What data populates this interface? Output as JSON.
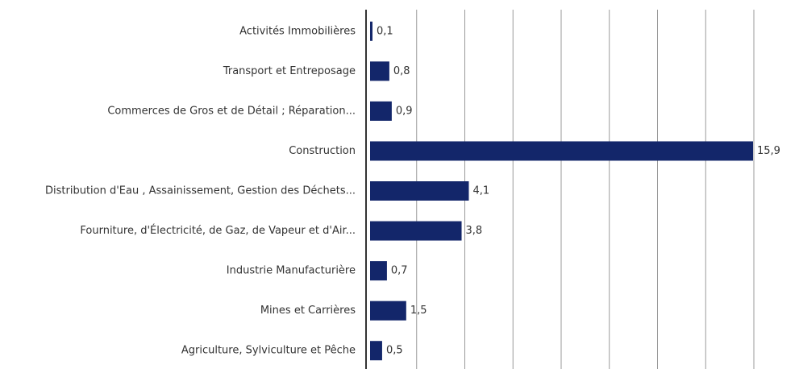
{
  "chart_data": {
    "type": "barh",
    "categories": [
      "Activités Immobilières",
      "Transport et Entreposage",
      "Commerces de Gros et de Détail ; Réparation...",
      "Construction",
      "Distribution d'Eau , Assainissement, Gestion des Déchets...",
      "Fourniture, d'Électricité, de Gaz, de Vapeur et d'Air...",
      "Industrie Manufacturière",
      "Mines et Carrières",
      "Agriculture, Sylviculture et Pêche"
    ],
    "values": [
      0.1,
      0.8,
      0.9,
      15.9,
      4.1,
      3.8,
      0.7,
      1.5,
      0.5
    ],
    "value_labels": [
      "0,1",
      "0,8",
      "0,9",
      "15,9",
      "4,1",
      "3,8",
      "0,7",
      "1,5",
      "0,5"
    ],
    "color": "#13266a",
    "xlim": [
      0,
      16
    ],
    "xticks": [
      0,
      2,
      4,
      6,
      8,
      10,
      12,
      14,
      16
    ],
    "grid": true
  }
}
